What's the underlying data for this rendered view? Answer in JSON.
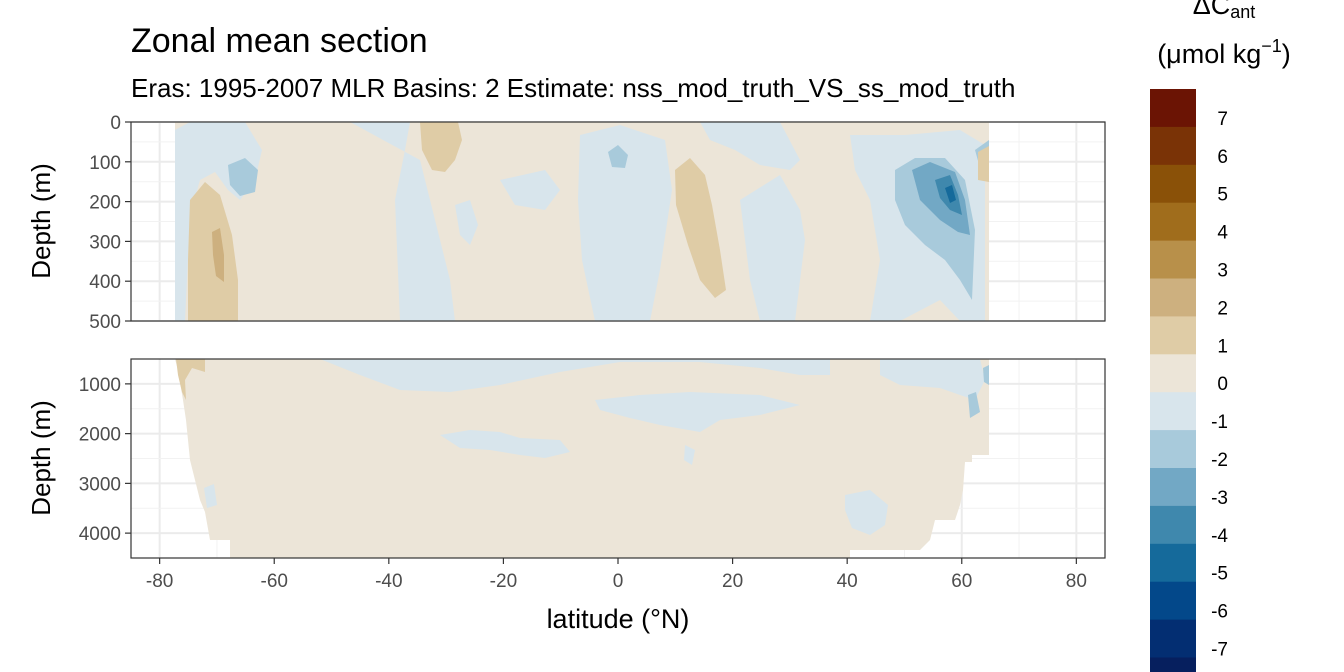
{
  "chart_data": {
    "type": "heatmap",
    "title": "Zonal mean section",
    "subtitle": "Eras: 1995-2007 MLR Basins: 2 Estimate: nss_mod_truth_VS_ss_mod_truth",
    "xlabel": "latitude (°N)",
    "xlim": [
      -85,
      85
    ],
    "x_ticks": [
      -80,
      -60,
      -40,
      -20,
      0,
      20,
      40,
      60,
      80
    ],
    "x_tick_labels": [
      "-80",
      "-60",
      "-40",
      "-20",
      "0",
      "20",
      "40",
      "60",
      "80"
    ],
    "data_lat_range": [
      -77,
      64
    ],
    "panels": [
      {
        "ylabel": "Depth (m)",
        "ylim": [
          0,
          500
        ],
        "reversed": true,
        "y_ticks": [
          0,
          100,
          200,
          300,
          400,
          500
        ],
        "y_tick_labels": [
          "0",
          "100",
          "200",
          "300",
          "400",
          "500"
        ]
      },
      {
        "ylabel": "Depth (m)",
        "ylim": [
          500,
          4500
        ],
        "reversed": true,
        "y_ticks": [
          1000,
          2000,
          3000,
          4000
        ],
        "y_tick_labels": [
          "1000",
          "2000",
          "3000",
          "4000"
        ]
      }
    ],
    "legend": {
      "title_line1": "ΔC",
      "title_line1_sub": "ant",
      "title_line2_prefix": "(μmol kg",
      "title_line2_sup": "−1",
      "title_line2_suffix": ")",
      "placement": "right",
      "breaks": [
        {
          "label": "7",
          "color": "#6b1404"
        },
        {
          "label": "6",
          "color": "#7a3306"
        },
        {
          "label": "5",
          "color": "#8a5108"
        },
        {
          "label": "4",
          "color": "#a06d1c"
        },
        {
          "label": "3",
          "color": "#b8904a"
        },
        {
          "label": "2",
          "color": "#cdb07f"
        },
        {
          "label": "1",
          "color": "#dfcca6"
        },
        {
          "label": "0",
          "color": "#ece5d8"
        },
        {
          "label": "-1",
          "color": "#d8e5ec"
        },
        {
          "label": "-2",
          "color": "#a8cadb"
        },
        {
          "label": "-3",
          "color": "#72a8c5"
        },
        {
          "label": "-4",
          "color": "#3f88ad"
        },
        {
          "label": "-5",
          "color": "#156a9b"
        },
        {
          "label": "-6",
          "color": "#03488a"
        },
        {
          "label": "-7",
          "color": "#032e72"
        }
      ],
      "bottom_swatch_color": "#061f5e"
    },
    "colors": {
      "zero_to_one": "#ece5d8",
      "minus_one_to_zero": "#d8e5ec",
      "one_to_two": "#dfcca6",
      "two_to_three": "#cdb07f",
      "three_to_four": "#b8904a",
      "minus_two_to_minus_one": "#a8cadb",
      "minus_three_to_minus_two": "#72a8c5",
      "minus_four_to_minus_three": "#3f88ad",
      "minus_five_to_minus_four": "#156a9b"
    }
  }
}
